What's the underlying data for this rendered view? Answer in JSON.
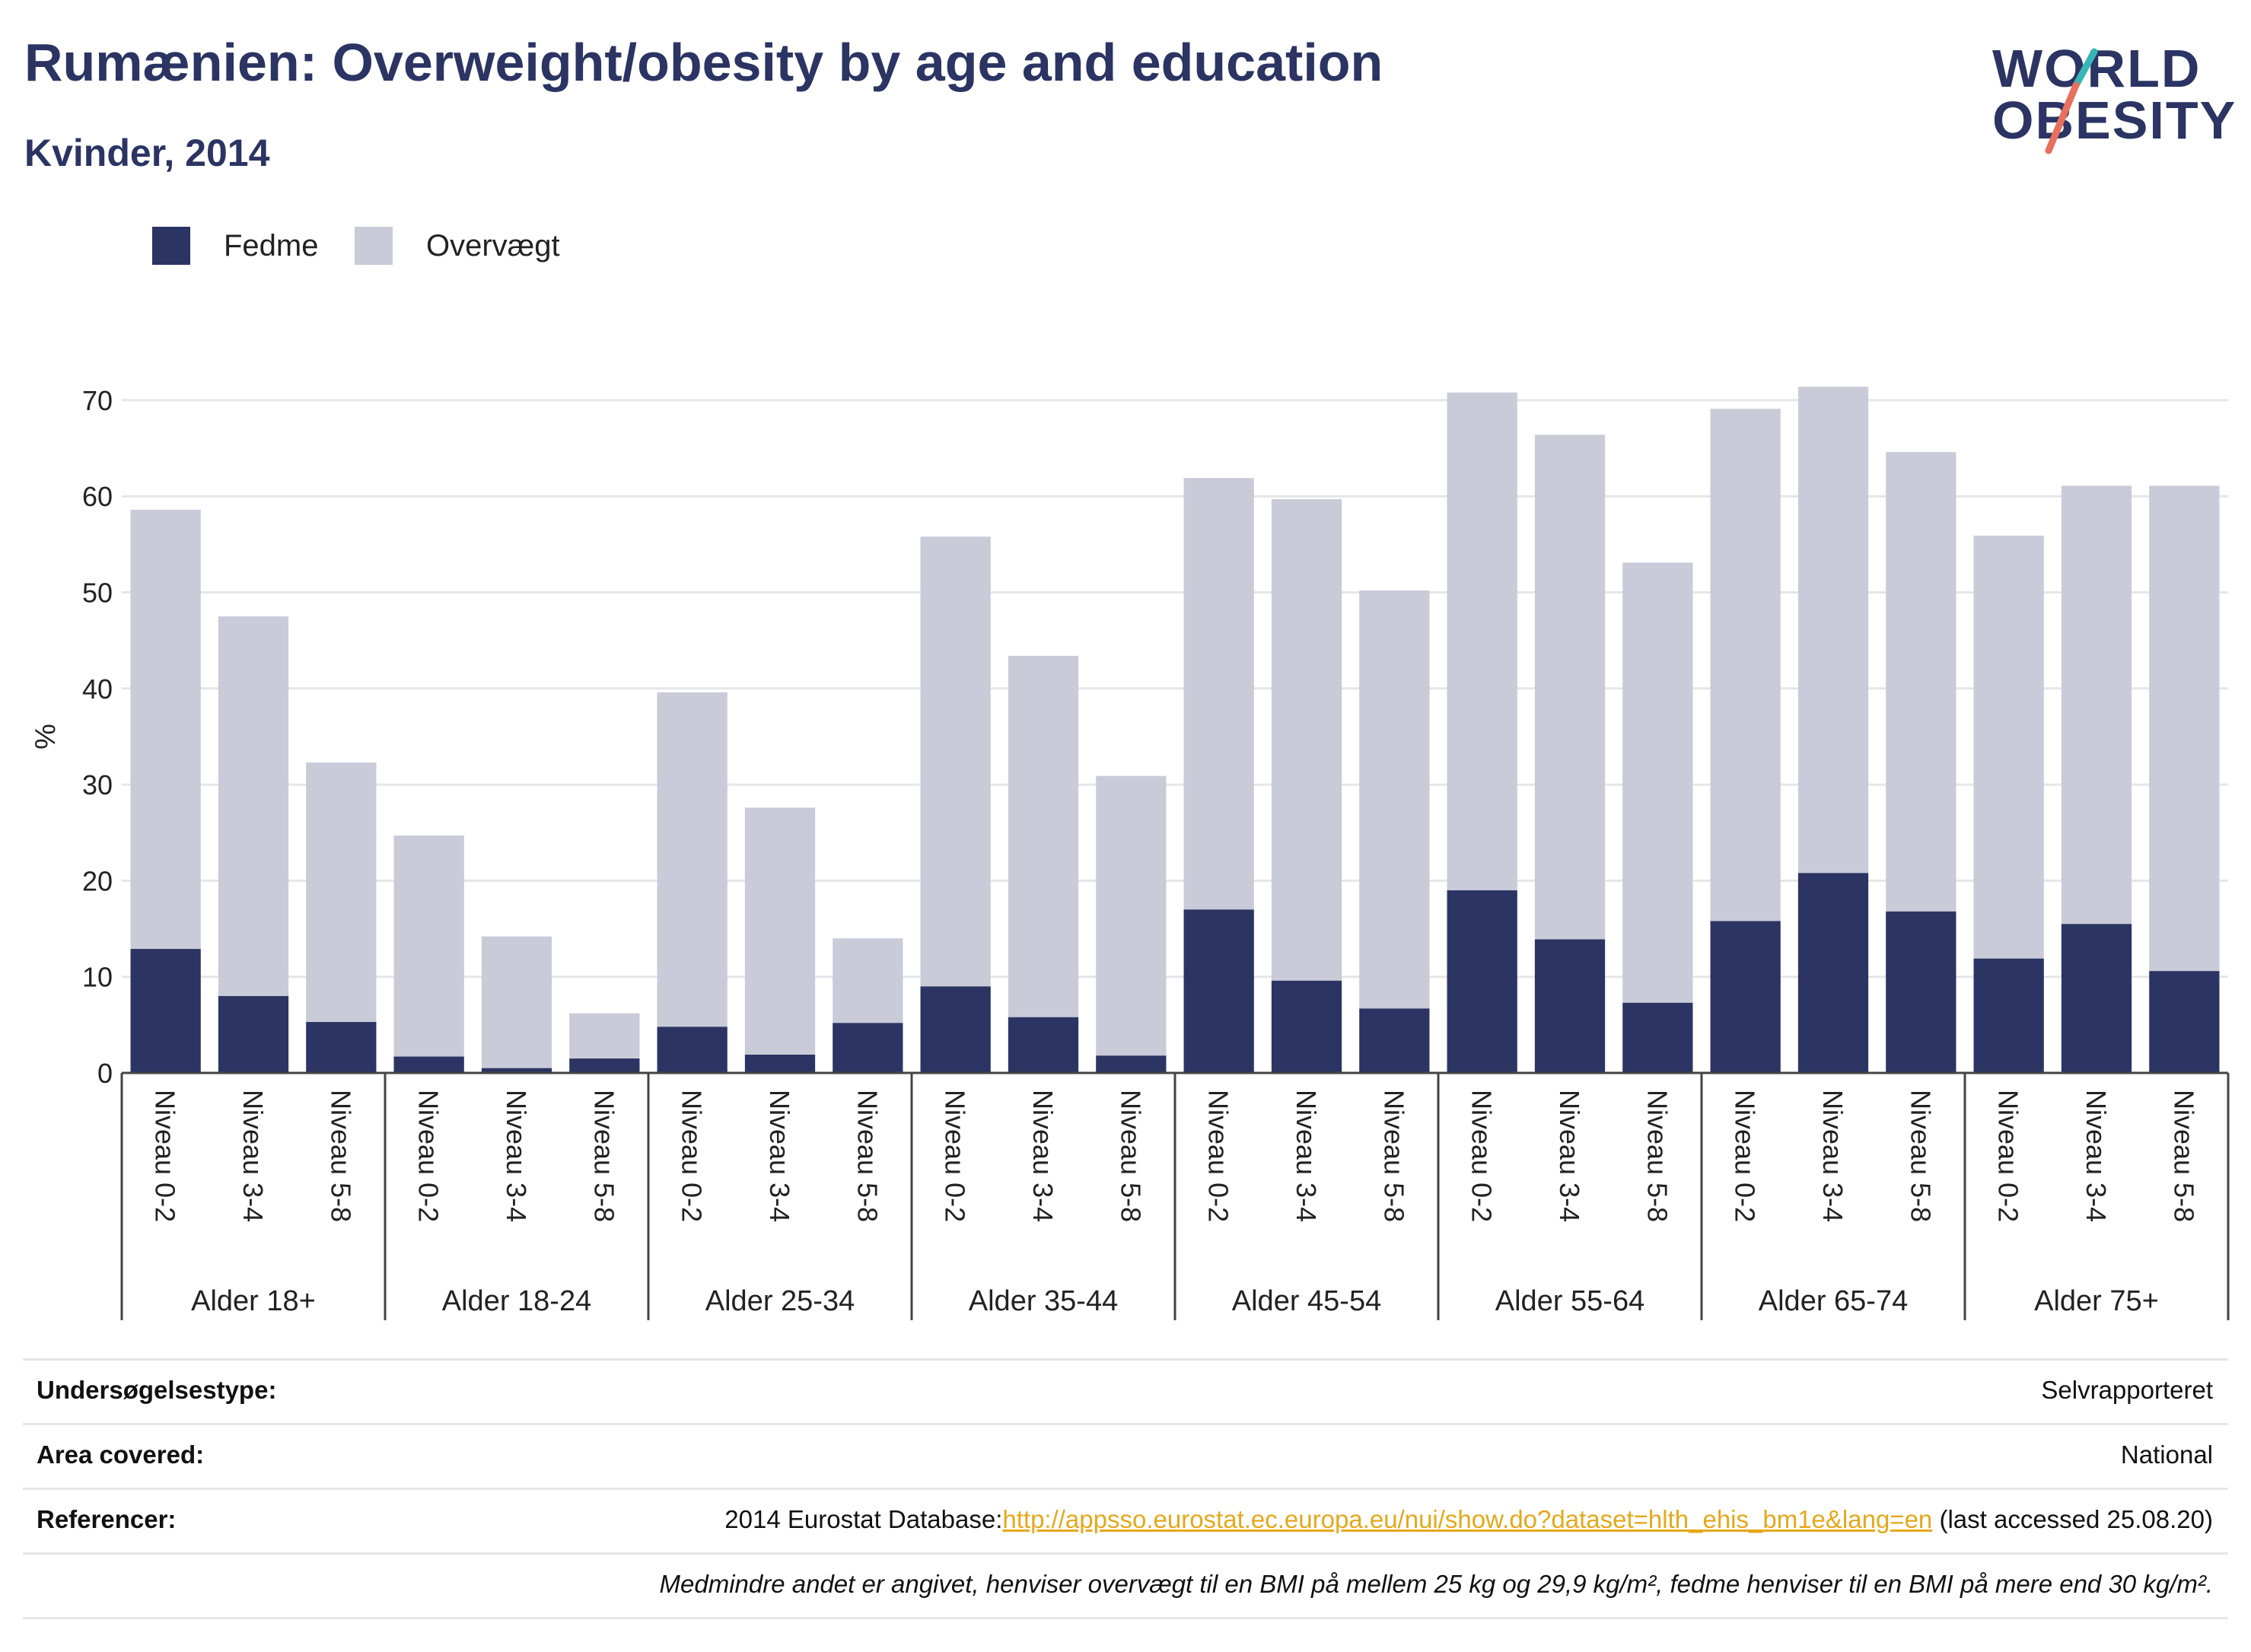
{
  "header": {
    "title": "Rumænien: Overweight/obesity by age and education",
    "subtitle": "Kvinder, 2014"
  },
  "logo": {
    "line1": "WORLD",
    "line2": "OBESITY"
  },
  "colors": {
    "obesity": "#2b3462",
    "overweight": "#c9cbd8",
    "title": "#2b3462",
    "link": "#e4a81b",
    "logo_teal": "#38b5b5",
    "logo_coral": "#e8705c"
  },
  "legend": [
    {
      "label": "Fedme",
      "color": "#2b3462"
    },
    {
      "label": "Overvægt",
      "color": "#c9cbd8"
    }
  ],
  "chart_data": {
    "type": "bar",
    "stacked": true,
    "ylabel": "%",
    "ylim": [
      0,
      75
    ],
    "yticks": [
      0,
      10,
      20,
      30,
      40,
      50,
      60,
      70
    ],
    "grid": true,
    "legend_position": "top-left",
    "groups": [
      "Alder 18+",
      "Alder 18-24",
      "Alder 25-34",
      "Alder 35-44",
      "Alder 45-54",
      "Alder 55-64",
      "Alder 65-74",
      "Alder 75+"
    ],
    "subcategories": [
      "Niveau 0-2",
      "Niveau 3-4",
      "Niveau 5-8"
    ],
    "series": [
      {
        "name": "Fedme",
        "values": [
          12.9,
          8.0,
          5.3,
          1.7,
          0.5,
          1.5,
          4.8,
          1.9,
          5.2,
          9.0,
          5.8,
          1.8,
          17.0,
          9.6,
          6.7,
          19.0,
          13.9,
          7.3,
          15.8,
          20.8,
          16.8,
          11.9,
          15.5,
          10.6
        ]
      },
      {
        "name": "Overvægt",
        "values": [
          45.7,
          39.5,
          27.0,
          23.0,
          13.7,
          4.7,
          34.8,
          25.7,
          8.8,
          46.8,
          37.6,
          29.1,
          44.9,
          50.1,
          43.5,
          51.8,
          52.5,
          45.8,
          53.3,
          50.6,
          47.8,
          44.0,
          45.6,
          50.5
        ]
      }
    ]
  },
  "footer": {
    "survey_label": "Undersøgelsestype:",
    "survey_value": "Selvrapporteret",
    "area_label": "Area covered:",
    "area_value": "National",
    "ref_label": "Referencer:",
    "ref_prefix": "2014 Eurostat Database:",
    "ref_link": "http://appsso.eurostat.ec.europa.eu/nui/show.do?dataset=hlth_ehis_bm1e&lang=en",
    "ref_suffix": " (last accessed 25.08.20)",
    "note": "Medmindre andet er angivet, henviser overvægt til en BMI på mellem 25 kg og 29,9 kg/m², fedme henviser til en BMI på mere end 30 kg/m²."
  }
}
